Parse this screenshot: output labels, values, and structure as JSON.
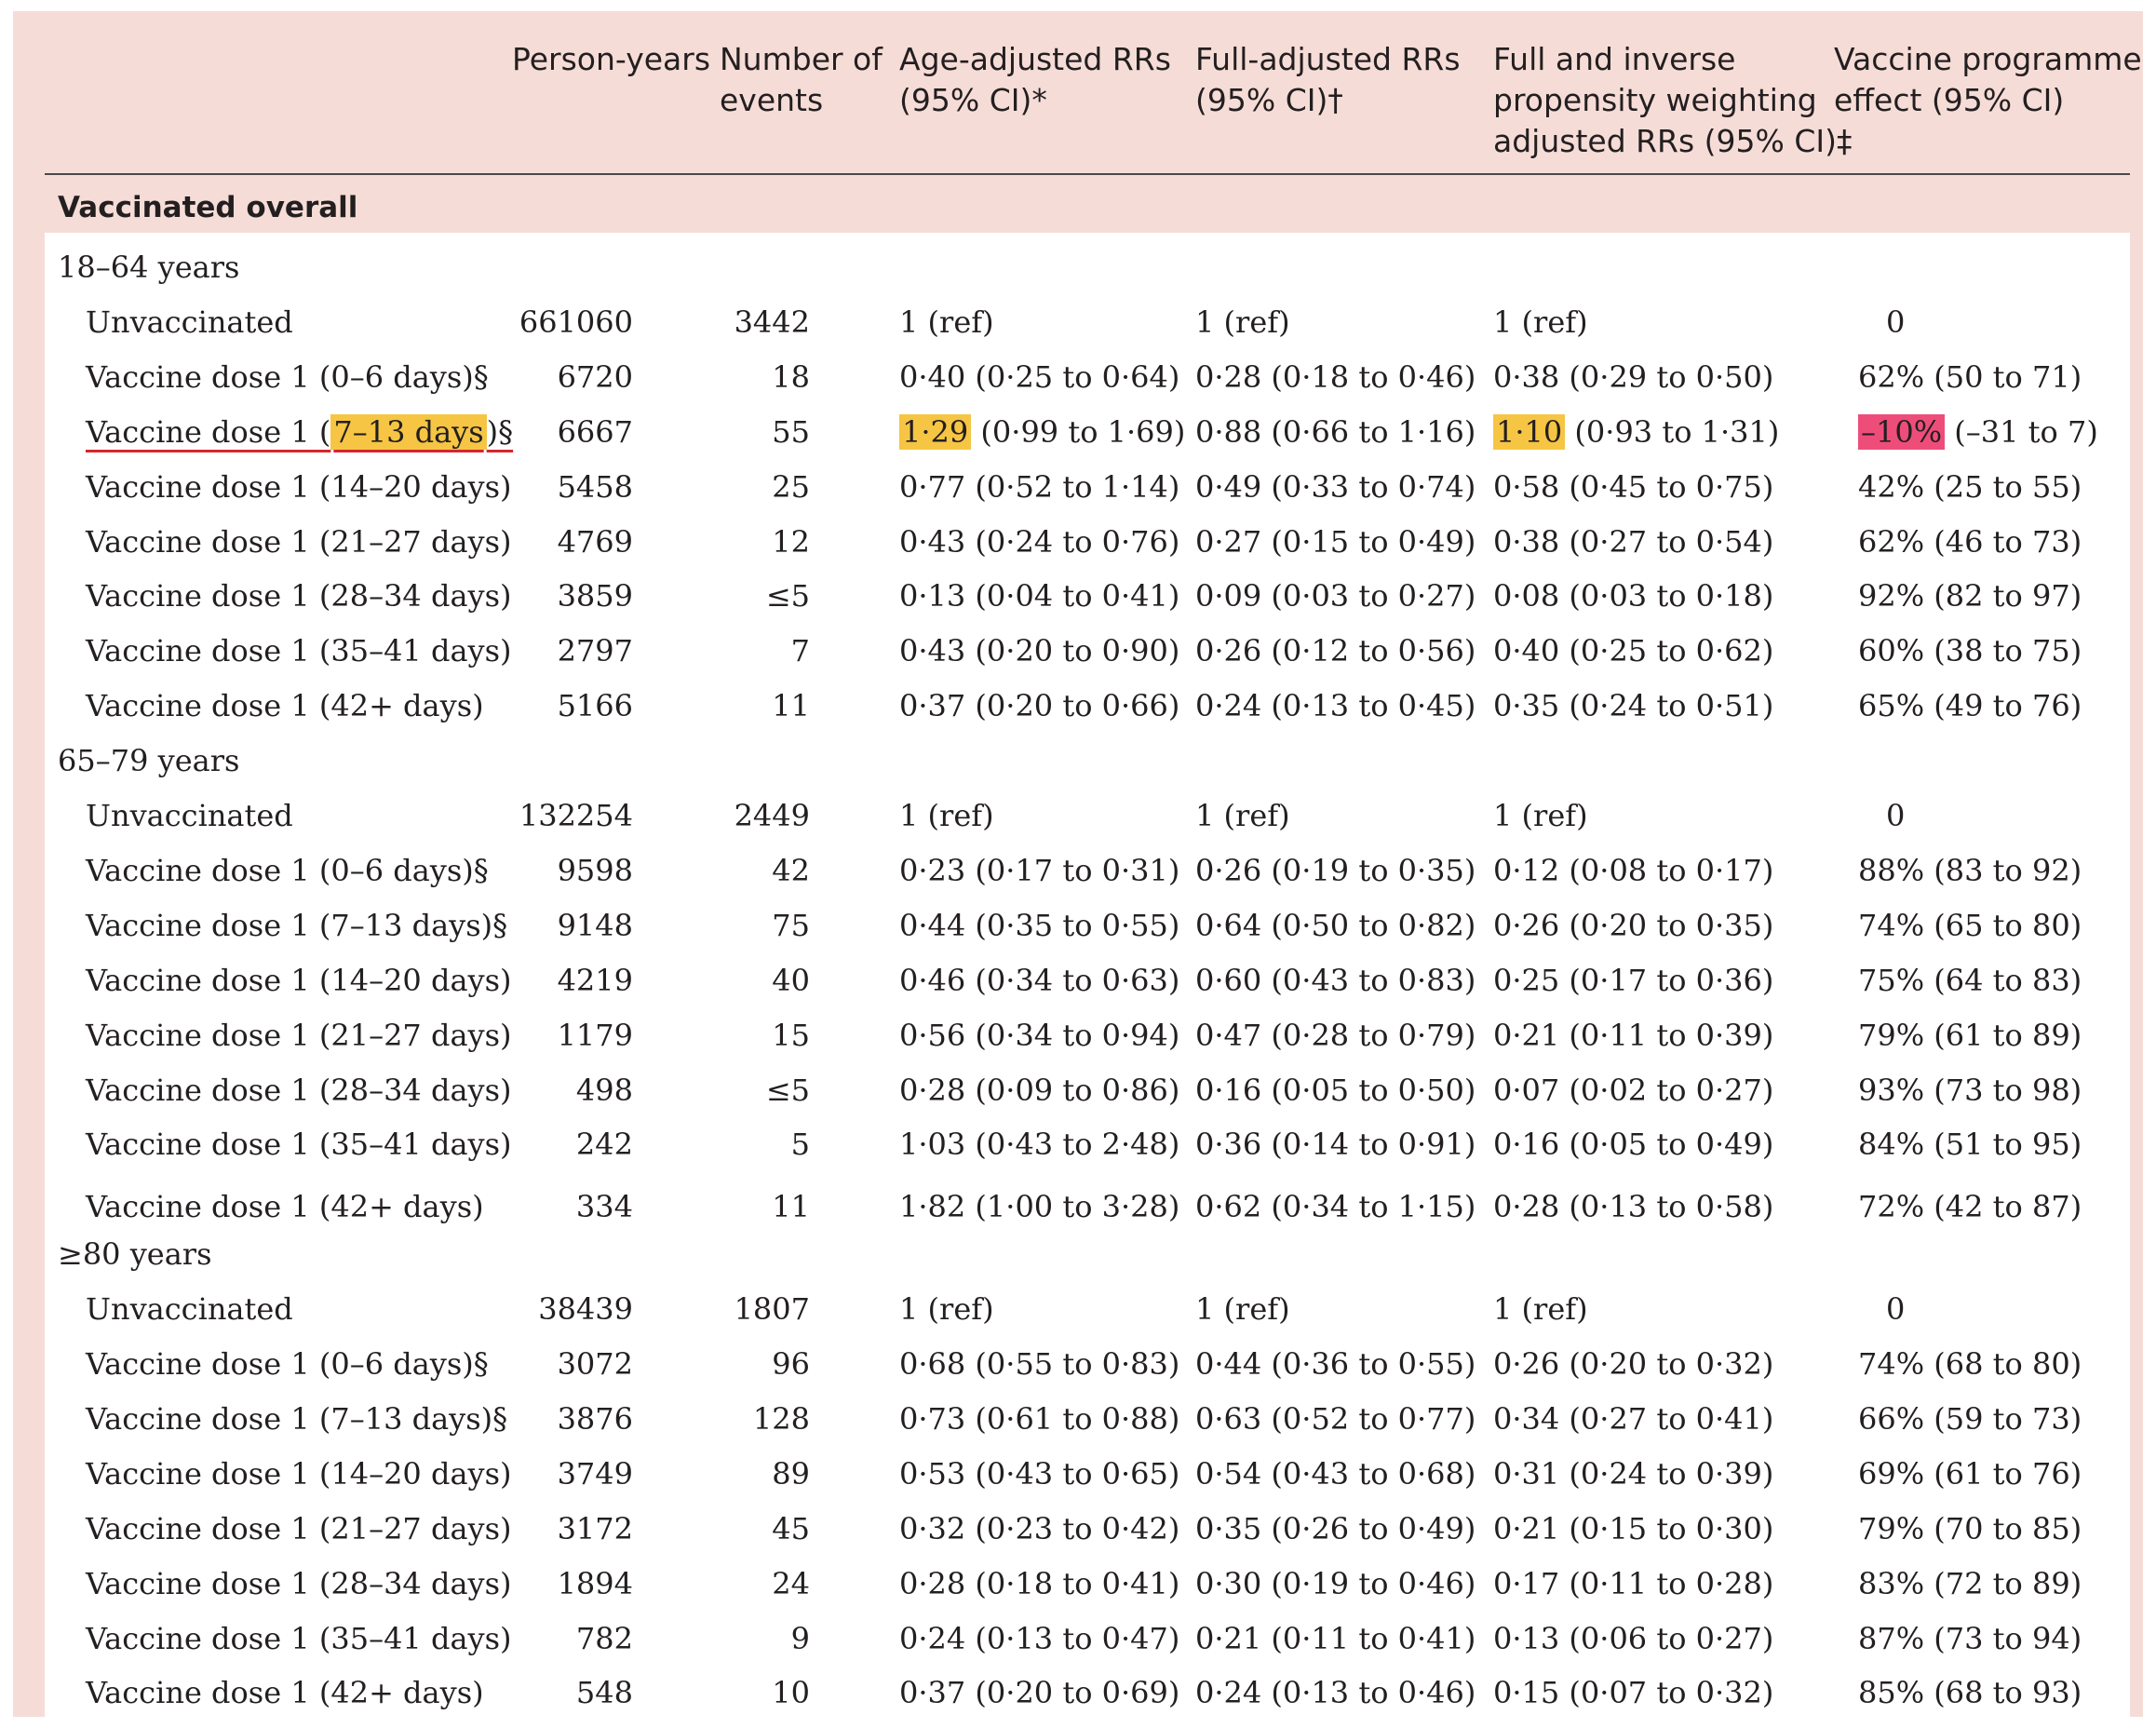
{
  "headers": {
    "person_years": [
      "Person-years"
    ],
    "events": [
      "Number of",
      "events"
    ],
    "age_adj": [
      "Age-adjusted RRs",
      "(95% CI)*"
    ],
    "full_adj": [
      "Full-adjusted RRs",
      "(95% CI)†"
    ],
    "ipw": [
      "Full and inverse",
      "propensity weighting",
      "adjusted RRs (95% CI)‡"
    ],
    "effect": [
      "Vaccine programme",
      "effect (95% CI)"
    ]
  },
  "section_title": "Vaccinated overall",
  "groups": [
    {
      "label": "18–64 years",
      "rows": [
        {
          "label": "Unvaccinated",
          "py": "661060",
          "ev": "3442",
          "age": "1 (ref)",
          "full": "1 (ref)",
          "ipw": "1 (ref)",
          "eff": "0"
        },
        {
          "label": "Vaccine dose 1 (0–6 days)§",
          "py": "6720",
          "ev": "18",
          "age": "0·40 (0·25 to 0·64)",
          "full": "0·28 (0·18 to 0·46)",
          "ipw": "0·38 (0·29 to 0·50)",
          "eff": "62% (50 to 71)"
        },
        {
          "label_pre": "Vaccine dose 1 (",
          "label_hl": "7–13 days",
          "label_post": ")§",
          "py": "6667",
          "ev": "55",
          "age_hl": "1·29",
          "age_rest": " (0·99 to 1·69)",
          "full": "0·88 (0·66 to 1·16)",
          "ipw_hl": "1·10",
          "ipw_rest": " (0·93 to 1·31)",
          "eff_hl": "–10%",
          "eff_rest": " (–31 to 7)"
        },
        {
          "label": "Vaccine dose 1 (14–20 days)",
          "py": "5458",
          "ev": "25",
          "age": "0·77 (0·52 to 1·14)",
          "full": "0·49 (0·33 to 0·74)",
          "ipw": "0·58 (0·45 to 0·75)",
          "eff": "42% (25 to 55)"
        },
        {
          "label": "Vaccine dose 1 (21–27 days)",
          "py": "4769",
          "ev": "12",
          "age": "0·43 (0·24 to 0·76)",
          "full": "0·27 (0·15 to 0·49)",
          "ipw": "0·38 (0·27 to 0·54)",
          "eff": "62% (46 to 73)"
        },
        {
          "label": "Vaccine dose 1 (28–34 days)",
          "py": "3859",
          "ev": "≤5",
          "age": "0·13 (0·04 to 0·41)",
          "full": "0·09 (0·03 to 0·27)",
          "ipw": "0·08 (0·03 to 0·18)",
          "eff": "92% (82 to 97)"
        },
        {
          "label": "Vaccine dose 1 (35–41 days)",
          "py": "2797",
          "ev": "7",
          "age": "0·43 (0·20 to 0·90)",
          "full": "0·26 (0·12 to 0·56)",
          "ipw": "0·40 (0·25 to 0·62)",
          "eff": "60% (38 to 75)"
        },
        {
          "label": "Vaccine dose 1 (42+ days)",
          "py": "5166",
          "ev": "11",
          "age": "0·37 (0·20 to 0·66)",
          "full": "0·24 (0·13 to 0·45)",
          "ipw": "0·35 (0·24 to 0·51)",
          "eff": "65% (49 to 76)"
        }
      ]
    },
    {
      "label": "65–79 years",
      "rows": [
        {
          "label": "Unvaccinated",
          "py": "132254",
          "ev": "2449",
          "age": "1 (ref)",
          "full": "1 (ref)",
          "ipw": "1 (ref)",
          "eff": "0"
        },
        {
          "label": "Vaccine dose 1 (0–6 days)§",
          "py": "9598",
          "ev": "42",
          "age": "0·23 (0·17 to 0·31)",
          "full": "0·26 (0·19 to 0·35)",
          "ipw": "0·12 (0·08 to 0·17)",
          "eff": "88% (83 to 92)"
        },
        {
          "label": "Vaccine dose 1 (7–13 days)§",
          "py": "9148",
          "ev": "75",
          "age": "0·44 (0·35 to 0·55)",
          "full": "0·64 (0·50 to 0·82)",
          "ipw": "0·26 (0·20 to 0·35)",
          "eff": "74% (65 to 80)"
        },
        {
          "label": "Vaccine dose 1 (14–20 days)",
          "py": "4219",
          "ev": "40",
          "age": "0·46 (0·34 to 0·63)",
          "full": "0·60 (0·43 to 0·83)",
          "ipw": "0·25 (0·17 to 0·36)",
          "eff": "75% (64 to 83)"
        },
        {
          "label": "Vaccine dose 1 (21–27 days)",
          "py": "1179",
          "ev": "15",
          "age": "0·56 (0·34 to 0·94)",
          "full": "0·47 (0·28 to 0·79)",
          "ipw": "0·21 (0·11 to 0·39)",
          "eff": "79% (61 to 89)"
        },
        {
          "label": "Vaccine dose 1 (28–34 days)",
          "py": "498",
          "ev": "≤5",
          "age": "0·28 (0·09 to 0·86)",
          "full": "0·16 (0·05 to 0·50)",
          "ipw": "0·07 (0·02 to 0·27)",
          "eff": "93% (73 to 98)"
        },
        {
          "label": "Vaccine dose 1 (35–41 days)",
          "py": "242",
          "ev": "5",
          "age": "1·03 (0·43 to 2·48)",
          "full": "0·36 (0·14 to 0·91)",
          "ipw": "0·16 (0·05 to 0·49)",
          "eff": "84% (51 to 95)"
        },
        {
          "label": "Vaccine dose 1 (42+ days)",
          "py": "334",
          "ev": "11",
          "age": "1·82 (1·00 to 3·28)",
          "full": "0·62 (0·34 to 1·15)",
          "ipw": "0·28 (0·13 to 0·58)",
          "eff": "72% (42 to 87)"
        }
      ]
    },
    {
      "label": "≥80 years",
      "rows": [
        {
          "label": "Unvaccinated",
          "py": "38439",
          "ev": "1807",
          "age": "1 (ref)",
          "full": "1 (ref)",
          "ipw": "1 (ref)",
          "eff": "0"
        },
        {
          "label": "Vaccine dose 1 (0–6 days)§",
          "py": "3072",
          "ev": "96",
          "age": "0·68 (0·55 to 0·83)",
          "full": "0·44 (0·36 to 0·55)",
          "ipw": "0·26 (0·20 to 0·32)",
          "eff": "74% (68 to 80)"
        },
        {
          "label": "Vaccine dose 1 (7–13 days)§",
          "py": "3876",
          "ev": "128",
          "age": "0·73 (0·61 to 0·88)",
          "full": "0·63 (0·52 to 0·77)",
          "ipw": "0·34 (0·27 to 0·41)",
          "eff": "66% (59 to 73)"
        },
        {
          "label": "Vaccine dose 1 (14–20 days)",
          "py": "3749",
          "ev": "89",
          "age": "0·53 (0·43 to 0·65)",
          "full": "0·54 (0·43 to 0·68)",
          "ipw": "0·31 (0·24 to 0·39)",
          "eff": "69% (61 to 76)"
        },
        {
          "label": "Vaccine dose 1 (21–27 days)",
          "py": "3172",
          "ev": "45",
          "age": "0·32 (0·23 to 0·42)",
          "full": "0·35 (0·26 to 0·49)",
          "ipw": "0·21 (0·15 to 0·30)",
          "eff": "79% (70 to 85)"
        },
        {
          "label": "Vaccine dose 1 (28–34 days)",
          "py": "1894",
          "ev": "24",
          "age": "0·28 (0·18 to 0·41)",
          "full": "0·30 (0·19 to 0·46)",
          "ipw": "0·17 (0·11 to 0·28)",
          "eff": "83% (72 to 89)"
        },
        {
          "label": "Vaccine dose 1 (35–41 days)",
          "py": "782",
          "ev": "9",
          "age": "0·24 (0·13 to 0·47)",
          "full": "0·21 (0·11 to 0·41)",
          "ipw": "0·13 (0·06 to 0·27)",
          "eff": "87% (73 to 94)"
        },
        {
          "label": "Vaccine dose 1 (42+ days)",
          "py": "548",
          "ev": "10",
          "age": "0·37 (0·20 to 0·69)",
          "full": "0·24 (0·13 to 0·46)",
          "ipw": "0·15 (0·07 to 0·32)",
          "eff": "85% (68 to 93)"
        }
      ]
    }
  ],
  "colors": {
    "frame_bg": "#f6dcd7",
    "highlight_yellow": "#f6c544",
    "highlight_pink": "#ee4d7a",
    "underline_red": "#d7262b"
  }
}
